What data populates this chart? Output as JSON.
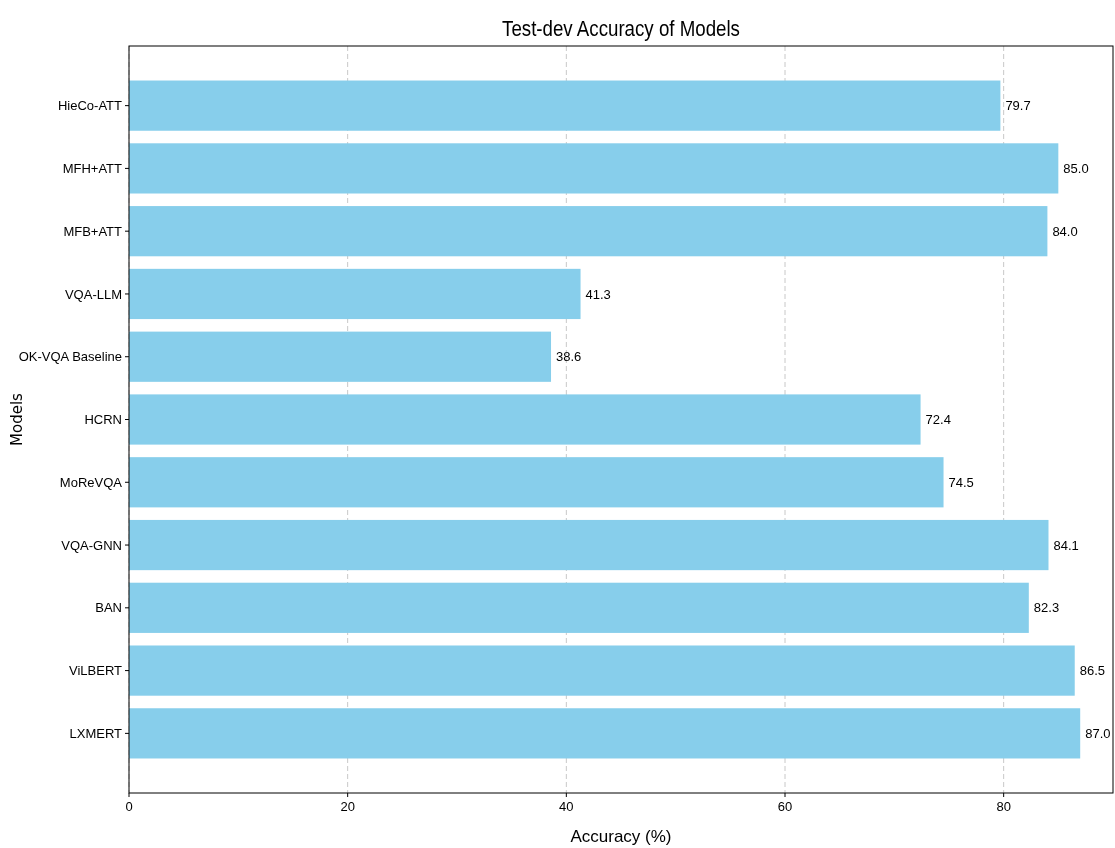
{
  "chart_data": {
    "type": "bar",
    "orientation": "horizontal",
    "title": "Test-dev Accuracy of Models",
    "xlabel": "Accuracy (%)",
    "ylabel": "Models",
    "categories": [
      "HieCo-ATT",
      "MFH+ATT",
      "MFB+ATT",
      "VQA-LLM",
      "OK-VQA Baseline",
      "HCRN",
      "MoReVQA",
      "VQA-GNN",
      "BAN",
      "ViLBERT",
      "LXMERT"
    ],
    "values": [
      79.7,
      85.0,
      84.0,
      41.3,
      38.6,
      72.4,
      74.5,
      84.1,
      82.3,
      86.5,
      87.0
    ],
    "value_labels": [
      "79.7",
      "85.0",
      "84.0",
      "41.3",
      "38.6",
      "72.4",
      "74.5",
      "84.1",
      "82.3",
      "86.5",
      "87.0"
    ],
    "color": "#87ceeb",
    "xlim": [
      0,
      90
    ],
    "xticks": [
      0,
      20,
      40,
      60,
      80
    ],
    "grid": "x"
  }
}
